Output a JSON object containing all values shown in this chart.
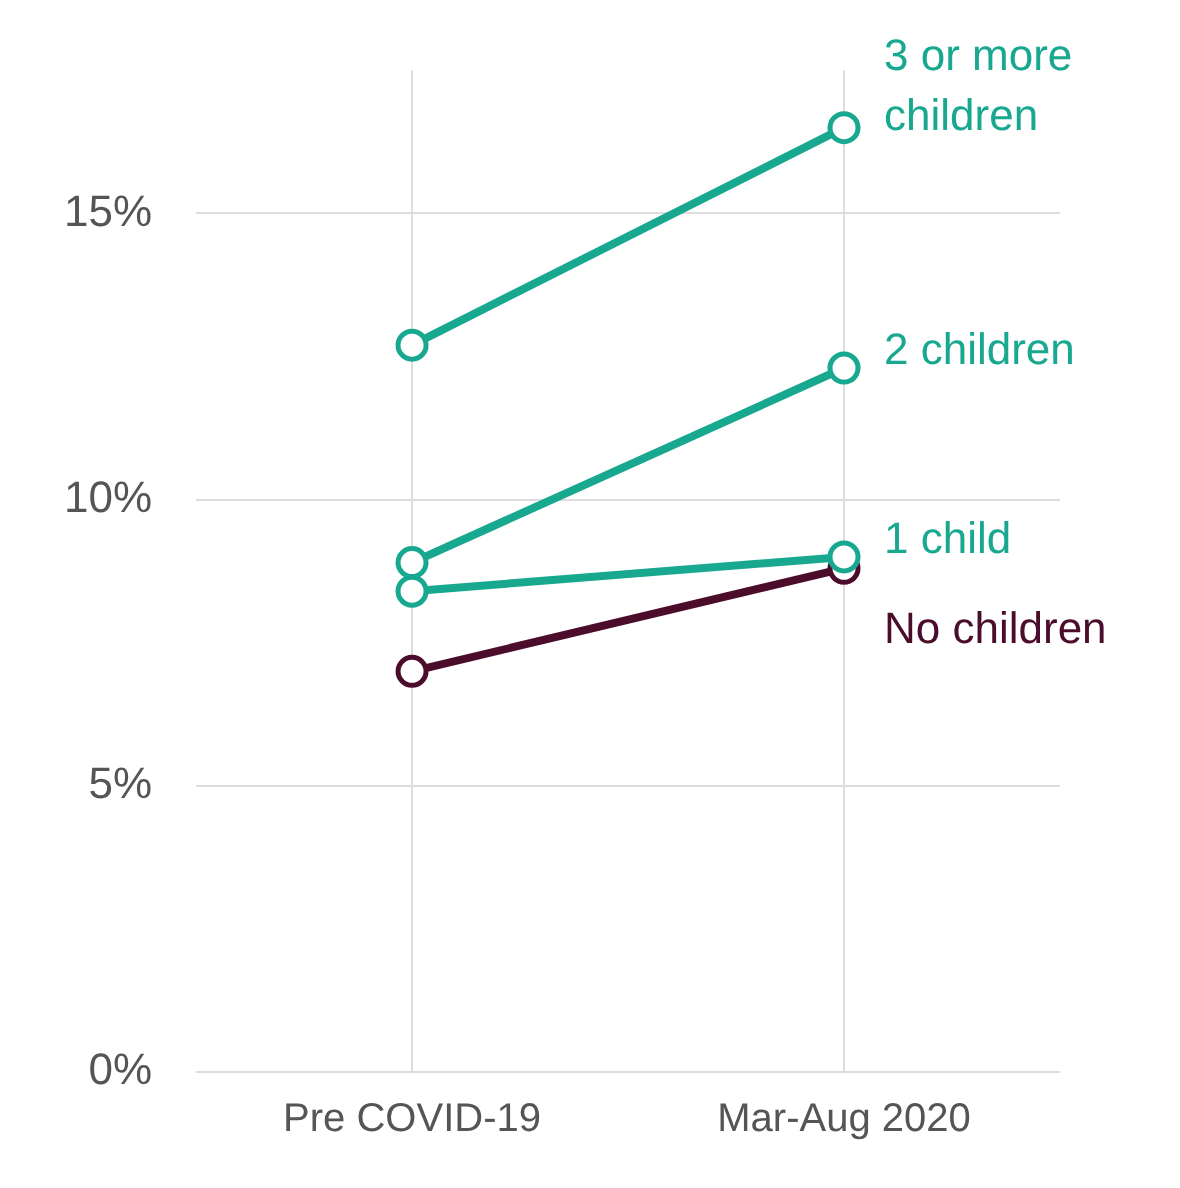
{
  "chart_data": {
    "type": "line",
    "categories": [
      "Pre COVID-19",
      "Mar-Aug 2020"
    ],
    "series": [
      {
        "name": "3 or more children",
        "color": "#17a88f",
        "values": [
          12.7,
          16.5
        ]
      },
      {
        "name": "2 children",
        "color": "#17a88f",
        "values": [
          8.9,
          12.3
        ]
      },
      {
        "name": "1 child",
        "color": "#17a88f",
        "values": [
          8.4,
          9.0
        ]
      },
      {
        "name": "No children",
        "color": "#4b0d2b",
        "values": [
          7.0,
          8.8
        ]
      }
    ],
    "ylim": [
      0,
      17.5
    ],
    "yticks": [
      {
        "value": 0,
        "label": "0%"
      },
      {
        "value": 5,
        "label": "5%"
      },
      {
        "value": 10,
        "label": "10%"
      },
      {
        "value": 15,
        "label": "15%"
      }
    ],
    "grid": true,
    "legend": false,
    "marker": "circle",
    "line_style": "solid"
  }
}
